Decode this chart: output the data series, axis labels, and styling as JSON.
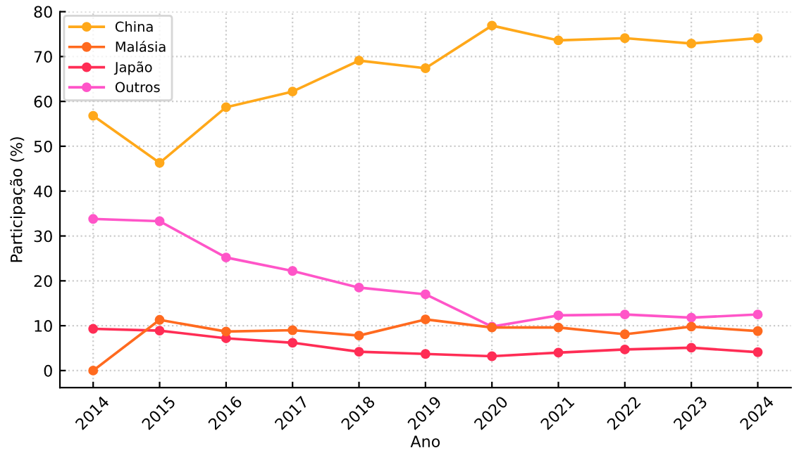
{
  "chart_data": {
    "type": "line",
    "xlabel": "Ano",
    "ylabel": "Participação (%)",
    "x": [
      2014,
      2015,
      2016,
      2017,
      2018,
      2019,
      2020,
      2021,
      2022,
      2023,
      2024
    ],
    "xlim": [
      2013.5,
      2024.5
    ],
    "xticks": [
      2014,
      2015,
      2016,
      2017,
      2018,
      2019,
      2020,
      2021,
      2022,
      2023,
      2024
    ],
    "ylim": [
      -3.8,
      80
    ],
    "yticks": [
      0,
      10,
      20,
      30,
      40,
      50,
      60,
      70,
      80
    ],
    "grid": true,
    "legend": "top left",
    "marker": "circle",
    "line_style": "solid",
    "series": [
      {
        "name": "China",
        "color": "#ffa81a",
        "values": [
          56.8,
          46.3,
          58.7,
          62.2,
          69.1,
          67.4,
          76.9,
          73.6,
          74.1,
          72.9,
          74.1
        ]
      },
      {
        "name": "Malásia",
        "color": "#ff6a1f",
        "values": [
          0,
          11.3,
          8.7,
          9.0,
          7.8,
          11.4,
          9.6,
          9.6,
          8.1,
          9.8,
          8.8
        ]
      },
      {
        "name": "Japão",
        "color": "#ff2d55",
        "values": [
          9.3,
          8.9,
          7.2,
          6.2,
          4.2,
          3.7,
          3.2,
          4.0,
          4.7,
          5.1,
          4.1
        ]
      },
      {
        "name": "Outros",
        "color": "#ff55c8",
        "values": [
          33.8,
          33.3,
          25.2,
          22.2,
          18.5,
          17.0,
          9.8,
          12.3,
          12.5,
          11.8,
          12.5
        ]
      }
    ]
  }
}
